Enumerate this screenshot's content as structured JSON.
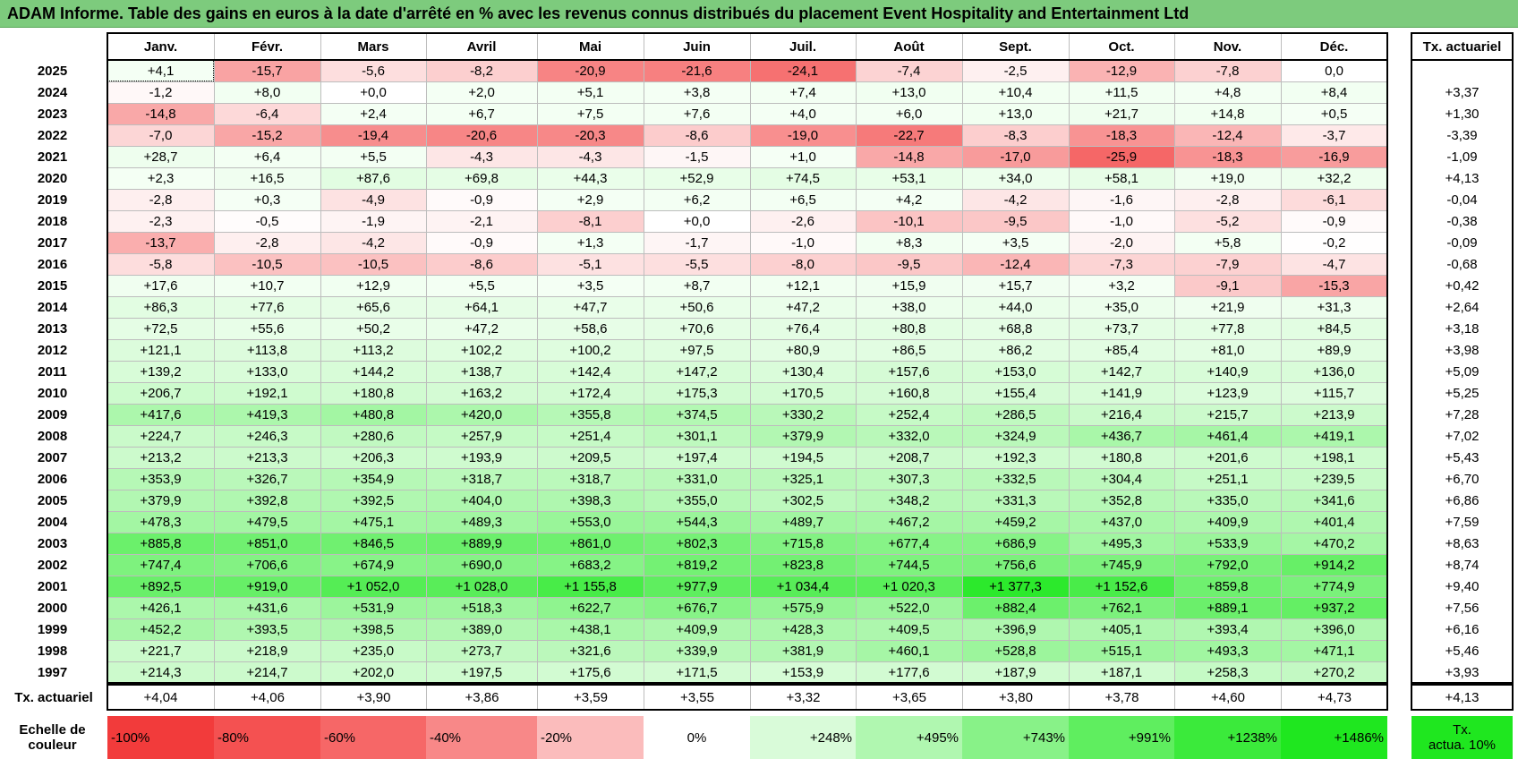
{
  "title": "ADAM Informe. Table des gains en euros à la date d'arrêté en % avec les revenus connus distribués du placement Event Hospitality and Entertainment Ltd",
  "chart_data": {
    "type": "heatmap",
    "months": [
      "Janv.",
      "Févr.",
      "Mars",
      "Avril",
      "Mai",
      "Juin",
      "Juil.",
      "Août",
      "Sept.",
      "Oct.",
      "Nov.",
      "Déc."
    ],
    "annual_rate_header": "Tx. actuariel",
    "rows": [
      {
        "year": "2025",
        "values": [
          "+4,1",
          "-15,7",
          "-5,6",
          "-8,2",
          "-20,9",
          "-21,6",
          "-24,1",
          "-7,4",
          "-2,5",
          "-12,9",
          "-7,8",
          "0,0"
        ],
        "rate": ""
      },
      {
        "year": "2024",
        "values": [
          "-1,2",
          "+8,0",
          "+0,0",
          "+2,0",
          "+5,1",
          "+3,8",
          "+7,4",
          "+13,0",
          "+10,4",
          "+11,5",
          "+4,8",
          "+8,4"
        ],
        "rate": "+3,37"
      },
      {
        "year": "2023",
        "values": [
          "-14,8",
          "-6,4",
          "+2,4",
          "+6,7",
          "+7,5",
          "+7,6",
          "+4,0",
          "+6,0",
          "+13,0",
          "+21,7",
          "+14,8",
          "+0,5"
        ],
        "rate": "+1,30"
      },
      {
        "year": "2022",
        "values": [
          "-7,0",
          "-15,2",
          "-19,4",
          "-20,6",
          "-20,3",
          "-8,6",
          "-19,0",
          "-22,7",
          "-8,3",
          "-18,3",
          "-12,4",
          "-3,7"
        ],
        "rate": "-3,39"
      },
      {
        "year": "2021",
        "values": [
          "+28,7",
          "+6,4",
          "+5,5",
          "-4,3",
          "-4,3",
          "-1,5",
          "+1,0",
          "-14,8",
          "-17,0",
          "-25,9",
          "-18,3",
          "-16,9"
        ],
        "rate": "-1,09"
      },
      {
        "year": "2020",
        "values": [
          "+2,3",
          "+16,5",
          "+87,6",
          "+69,8",
          "+44,3",
          "+52,9",
          "+74,5",
          "+53,1",
          "+34,0",
          "+58,1",
          "+19,0",
          "+32,2"
        ],
        "rate": "+4,13"
      },
      {
        "year": "2019",
        "values": [
          "-2,8",
          "+0,3",
          "-4,9",
          "-0,9",
          "+2,9",
          "+6,2",
          "+6,5",
          "+4,2",
          "-4,2",
          "-1,6",
          "-2,8",
          "-6,1"
        ],
        "rate": "-0,04"
      },
      {
        "year": "2018",
        "values": [
          "-2,3",
          "-0,5",
          "-1,9",
          "-2,1",
          "-8,1",
          "+0,0",
          "-2,6",
          "-10,1",
          "-9,5",
          "-1,0",
          "-5,2",
          "-0,9"
        ],
        "rate": "-0,38"
      },
      {
        "year": "2017",
        "values": [
          "-13,7",
          "-2,8",
          "-4,2",
          "-0,9",
          "+1,3",
          "-1,7",
          "-1,0",
          "+8,3",
          "+3,5",
          "-2,0",
          "+5,8",
          "-0,2"
        ],
        "rate": "-0,09"
      },
      {
        "year": "2016",
        "values": [
          "-5,8",
          "-10,5",
          "-10,5",
          "-8,6",
          "-5,1",
          "-5,5",
          "-8,0",
          "-9,5",
          "-12,4",
          "-7,3",
          "-7,9",
          "-4,7"
        ],
        "rate": "-0,68"
      },
      {
        "year": "2015",
        "values": [
          "+17,6",
          "+10,7",
          "+12,9",
          "+5,5",
          "+3,5",
          "+8,7",
          "+12,1",
          "+15,9",
          "+15,7",
          "+3,2",
          "-9,1",
          "-15,3"
        ],
        "rate": "+0,42"
      },
      {
        "year": "2014",
        "values": [
          "+86,3",
          "+77,6",
          "+65,6",
          "+64,1",
          "+47,7",
          "+50,6",
          "+47,2",
          "+38,0",
          "+44,0",
          "+35,0",
          "+21,9",
          "+31,3"
        ],
        "rate": "+2,64"
      },
      {
        "year": "2013",
        "values": [
          "+72,5",
          "+55,6",
          "+50,2",
          "+47,2",
          "+58,6",
          "+70,6",
          "+76,4",
          "+80,8",
          "+68,8",
          "+73,7",
          "+77,8",
          "+84,5"
        ],
        "rate": "+3,18"
      },
      {
        "year": "2012",
        "values": [
          "+121,1",
          "+113,8",
          "+113,2",
          "+102,2",
          "+100,2",
          "+97,5",
          "+80,9",
          "+86,5",
          "+86,2",
          "+85,4",
          "+81,0",
          "+89,9"
        ],
        "rate": "+3,98"
      },
      {
        "year": "2011",
        "values": [
          "+139,2",
          "+133,0",
          "+144,2",
          "+138,7",
          "+142,4",
          "+147,2",
          "+130,4",
          "+157,6",
          "+153,0",
          "+142,7",
          "+140,9",
          "+136,0"
        ],
        "rate": "+5,09"
      },
      {
        "year": "2010",
        "values": [
          "+206,7",
          "+192,1",
          "+180,8",
          "+163,2",
          "+172,4",
          "+175,3",
          "+170,5",
          "+160,8",
          "+155,4",
          "+141,9",
          "+123,9",
          "+115,7"
        ],
        "rate": "+5,25"
      },
      {
        "year": "2009",
        "values": [
          "+417,6",
          "+419,3",
          "+480,8",
          "+420,0",
          "+355,8",
          "+374,5",
          "+330,2",
          "+252,4",
          "+286,5",
          "+216,4",
          "+215,7",
          "+213,9"
        ],
        "rate": "+7,28"
      },
      {
        "year": "2008",
        "values": [
          "+224,7",
          "+246,3",
          "+280,6",
          "+257,9",
          "+251,4",
          "+301,1",
          "+379,9",
          "+332,0",
          "+324,9",
          "+436,7",
          "+461,4",
          "+419,1"
        ],
        "rate": "+7,02"
      },
      {
        "year": "2007",
        "values": [
          "+213,2",
          "+213,3",
          "+206,3",
          "+193,9",
          "+209,5",
          "+197,4",
          "+194,5",
          "+208,7",
          "+192,3",
          "+180,8",
          "+201,6",
          "+198,1"
        ],
        "rate": "+5,43"
      },
      {
        "year": "2006",
        "values": [
          "+353,9",
          "+326,7",
          "+354,9",
          "+318,7",
          "+318,7",
          "+331,0",
          "+325,1",
          "+307,3",
          "+332,5",
          "+304,4",
          "+251,1",
          "+239,5"
        ],
        "rate": "+6,70"
      },
      {
        "year": "2005",
        "values": [
          "+379,9",
          "+392,8",
          "+392,5",
          "+404,0",
          "+398,3",
          "+355,0",
          "+302,5",
          "+348,2",
          "+331,3",
          "+352,8",
          "+335,0",
          "+341,6"
        ],
        "rate": "+6,86"
      },
      {
        "year": "2004",
        "values": [
          "+478,3",
          "+479,5",
          "+475,1",
          "+489,3",
          "+553,0",
          "+544,3",
          "+489,7",
          "+467,2",
          "+459,2",
          "+437,0",
          "+409,9",
          "+401,4"
        ],
        "rate": "+7,59"
      },
      {
        "year": "2003",
        "values": [
          "+885,8",
          "+851,0",
          "+846,5",
          "+889,9",
          "+861,0",
          "+802,3",
          "+715,8",
          "+677,4",
          "+686,9",
          "+495,3",
          "+533,9",
          "+470,2"
        ],
        "rate": "+8,63"
      },
      {
        "year": "2002",
        "values": [
          "+747,4",
          "+706,6",
          "+674,9",
          "+690,0",
          "+683,2",
          "+819,2",
          "+823,8",
          "+744,5",
          "+756,6",
          "+745,9",
          "+792,0",
          "+914,2"
        ],
        "rate": "+8,74"
      },
      {
        "year": "2001",
        "values": [
          "+892,5",
          "+919,0",
          "+1 052,0",
          "+1 028,0",
          "+1 155,8",
          "+977,9",
          "+1 034,4",
          "+1 020,3",
          "+1 377,3",
          "+1 152,6",
          "+859,8",
          "+774,9"
        ],
        "rate": "+9,40"
      },
      {
        "year": "2000",
        "values": [
          "+426,1",
          "+431,6",
          "+531,9",
          "+518,3",
          "+622,7",
          "+676,7",
          "+575,9",
          "+522,0",
          "+882,4",
          "+762,1",
          "+889,1",
          "+937,2"
        ],
        "rate": "+7,56"
      },
      {
        "year": "1999",
        "values": [
          "+452,2",
          "+393,5",
          "+398,5",
          "+389,0",
          "+438,1",
          "+409,9",
          "+428,3",
          "+409,5",
          "+396,9",
          "+405,1",
          "+393,4",
          "+396,0"
        ],
        "rate": "+6,16"
      },
      {
        "year": "1998",
        "values": [
          "+221,7",
          "+218,9",
          "+235,0",
          "+273,7",
          "+321,6",
          "+339,9",
          "+381,9",
          "+460,1",
          "+528,8",
          "+515,1",
          "+493,3",
          "+471,1"
        ],
        "rate": "+5,46"
      },
      {
        "year": "1997",
        "values": [
          "+214,3",
          "+214,7",
          "+202,0",
          "+197,5",
          "+175,6",
          "+171,5",
          "+153,9",
          "+177,6",
          "+187,9",
          "+187,1",
          "+258,3",
          "+270,2"
        ],
        "rate": "+3,93"
      }
    ],
    "footer": {
      "label": "Tx. actuariel",
      "values": [
        "+4,04",
        "+4,06",
        "+3,90",
        "+3,86",
        "+3,59",
        "+3,55",
        "+3,32",
        "+3,65",
        "+3,80",
        "+3,78",
        "+4,60",
        "+4,73"
      ],
      "rate": "+4,13"
    }
  },
  "color_scale": {
    "label_line1": "Echelle de",
    "label_line2": "couleur",
    "stops": [
      {
        "label": "-100%",
        "color": "#f23b3b"
      },
      {
        "label": "-80%",
        "color": "#f45151"
      },
      {
        "label": "-60%",
        "color": "#f66767"
      },
      {
        "label": "-40%",
        "color": "#f88888"
      },
      {
        "label": "-20%",
        "color": "#fbbcbc"
      },
      {
        "label": "0%",
        "color": "#ffffff"
      },
      {
        "label": "+248%",
        "color": "#d9fbd9"
      },
      {
        "label": "+495%",
        "color": "#b0f7b0"
      },
      {
        "label": "+743%",
        "color": "#88f288"
      },
      {
        "label": "+991%",
        "color": "#5fee5f"
      },
      {
        "label": "+1238%",
        "color": "#3bea3b"
      },
      {
        "label": "+1486%",
        "color": "#1fe71f"
      }
    ],
    "rate_line1": "Tx.",
    "rate_line2": "actua. 10%",
    "rate_color": "#1fe71f"
  }
}
